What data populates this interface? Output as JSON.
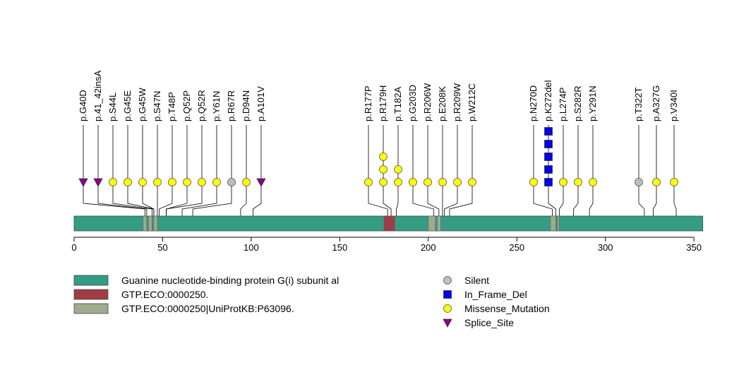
{
  "protein": {
    "length": 355,
    "color": "#359C84",
    "axis_ticks": [
      "0",
      "50",
      "100",
      "150",
      "200",
      "250",
      "300",
      "350"
    ]
  },
  "domains": [
    {
      "start": 39,
      "end": 41,
      "color": "#9EAB8E"
    },
    {
      "start": 42,
      "end": 44,
      "color": "#9EAB8E"
    },
    {
      "start": 45,
      "end": 47,
      "color": "#9EAB8E"
    },
    {
      "start": 175,
      "end": 181,
      "color": "#A03C44"
    },
    {
      "start": 200,
      "end": 204,
      "color": "#9EAB8E"
    },
    {
      "start": 205,
      "end": 207,
      "color": "#9EAB8E"
    },
    {
      "start": 269,
      "end": 272,
      "color": "#9EAB8E"
    },
    {
      "start": 273,
      "end": 274,
      "color": "#9EAB8E"
    }
  ],
  "mutations": [
    {
      "label": "p.G40D",
      "pos": 40,
      "type": "Splice_Site",
      "count": 1
    },
    {
      "label": "p.41_42insA",
      "pos": 41,
      "type": "Splice_Site",
      "count": 1
    },
    {
      "label": "p.S44L",
      "pos": 44,
      "type": "Missense_Mutation",
      "count": 1
    },
    {
      "label": "p.G45E",
      "pos": 45,
      "type": "Missense_Mutation",
      "count": 1
    },
    {
      "label": "p.G45W",
      "pos": 45,
      "type": "Missense_Mutation",
      "count": 1
    },
    {
      "label": "p.S47N",
      "pos": 47,
      "type": "Missense_Mutation",
      "count": 1
    },
    {
      "label": "p.T48P",
      "pos": 48,
      "type": "Missense_Mutation",
      "count": 1
    },
    {
      "label": "p.Q52P",
      "pos": 52,
      "type": "Missense_Mutation",
      "count": 1
    },
    {
      "label": "p.Q52R",
      "pos": 52,
      "type": "Missense_Mutation",
      "count": 1
    },
    {
      "label": "p.Y61N",
      "pos": 61,
      "type": "Missense_Mutation",
      "count": 1
    },
    {
      "label": "p.R67R",
      "pos": 67,
      "type": "Silent",
      "count": 1
    },
    {
      "label": "p.D94N",
      "pos": 94,
      "type": "Missense_Mutation",
      "count": 1
    },
    {
      "label": "p.A101V",
      "pos": 101,
      "type": "Splice_Site",
      "count": 1
    },
    {
      "label": "p.R177P",
      "pos": 177,
      "type": "Missense_Mutation",
      "count": 1
    },
    {
      "label": "p.R179H",
      "pos": 179,
      "type": "Missense_Mutation",
      "count": 3
    },
    {
      "label": "p.T182A",
      "pos": 182,
      "type": "Missense_Mutation",
      "count": 2
    },
    {
      "label": "p.G203D",
      "pos": 203,
      "type": "Missense_Mutation",
      "count": 1
    },
    {
      "label": "p.R206W",
      "pos": 206,
      "type": "Missense_Mutation",
      "count": 1
    },
    {
      "label": "p.E208K",
      "pos": 208,
      "type": "Missense_Mutation",
      "count": 1
    },
    {
      "label": "p.R209W",
      "pos": 209,
      "type": "Missense_Mutation",
      "count": 1
    },
    {
      "label": "p.W212C",
      "pos": 212,
      "type": "Missense_Mutation",
      "count": 1
    },
    {
      "label": "p.N270D",
      "pos": 270,
      "type": "Missense_Mutation",
      "count": 1
    },
    {
      "label": "p.K272del",
      "pos": 272,
      "type": "In_Frame_Del",
      "count": 5
    },
    {
      "label": "p.L274P",
      "pos": 274,
      "type": "Missense_Mutation",
      "count": 1
    },
    {
      "label": "p.S282R",
      "pos": 282,
      "type": "Missense_Mutation",
      "count": 1
    },
    {
      "label": "p.Y291N",
      "pos": 291,
      "type": "Missense_Mutation",
      "count": 1
    },
    {
      "label": "p.T322T",
      "pos": 322,
      "type": "Silent",
      "count": 1
    },
    {
      "label": "p.A327G",
      "pos": 327,
      "type": "Missense_Mutation",
      "count": 1
    },
    {
      "label": "p.V340I",
      "pos": 340,
      "type": "Missense_Mutation",
      "count": 1
    }
  ],
  "mutation_types": {
    "Silent": {
      "shape": "circle",
      "color": "#BEBEBE"
    },
    "In_Frame_Del": {
      "shape": "square",
      "color": "#0000EE"
    },
    "Missense_Mutation": {
      "shape": "circle",
      "color": "#FFFF00"
    },
    "Splice_Site": {
      "shape": "triangle",
      "color": "#8B008B"
    }
  },
  "domain_legend": [
    {
      "label": "Guanine nucleotide-binding protein G(i) subunit al",
      "color": "#359C84"
    },
    {
      "label": "GTP.ECO:0000250.",
      "color": "#A03C44"
    },
    {
      "label": "GTP.ECO:0000250|UniProtKB:P63096.",
      "color": "#9EAB8E"
    }
  ],
  "type_legend": [
    {
      "label": "Silent",
      "type": "Silent"
    },
    {
      "label": "In_Frame_Del",
      "type": "In_Frame_Del"
    },
    {
      "label": "Missense_Mutation",
      "type": "Missense_Mutation"
    },
    {
      "label": "Splice_Site",
      "type": "Splice_Site"
    }
  ]
}
